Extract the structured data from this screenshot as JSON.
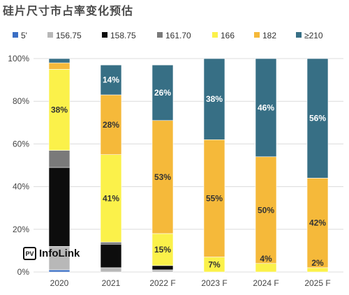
{
  "title": "硅片尺寸市占率变化预估",
  "logo": {
    "mark": "PV",
    "text": "InfoLink"
  },
  "colors": {
    "5'": "#3b6fc4",
    "156.75": "#b8b8b8",
    "158.75": "#0d0d0d",
    "161.70": "#7a7a7a",
    "166": "#fbf14a",
    "182": "#f5b93a",
    "≥210": "#376f85",
    "grid": "#dcdcdc",
    "axis_text": "#444444"
  },
  "chart_data": {
    "type": "bar",
    "stacked": true,
    "categories": [
      "2020",
      "2021",
      "2022 F",
      "2023 F",
      "2024 F",
      "2025 F"
    ],
    "series": [
      {
        "name": "5'",
        "values": [
          1,
          0,
          0,
          0,
          0,
          0
        ]
      },
      {
        "name": "156.75",
        "values": [
          11,
          2,
          1,
          0,
          0,
          0
        ]
      },
      {
        "name": "158.75",
        "values": [
          37,
          11,
          2,
          0,
          0,
          0
        ]
      },
      {
        "name": "161.70",
        "values": [
          8,
          1,
          0,
          0,
          0,
          0
        ]
      },
      {
        "name": "166",
        "values": [
          38,
          41,
          15,
          7,
          4,
          2
        ]
      },
      {
        "name": "182",
        "values": [
          3,
          28,
          53,
          55,
          50,
          42
        ]
      },
      {
        "name": "≥210",
        "values": [
          2,
          14,
          26,
          38,
          46,
          56
        ]
      }
    ],
    "data_labels": [
      {
        "category": "2020",
        "series": "166",
        "text": "38%"
      },
      {
        "category": "2021",
        "series": "166",
        "text": "41%"
      },
      {
        "category": "2021",
        "series": "182",
        "text": "28%"
      },
      {
        "category": "2021",
        "series": "≥210",
        "text": "14%"
      },
      {
        "category": "2022 F",
        "series": "166",
        "text": "15%"
      },
      {
        "category": "2022 F",
        "series": "182",
        "text": "53%"
      },
      {
        "category": "2022 F",
        "series": "≥210",
        "text": "26%"
      },
      {
        "category": "2023 F",
        "series": "166",
        "text": "7%"
      },
      {
        "category": "2023 F",
        "series": "182",
        "text": "55%"
      },
      {
        "category": "2023 F",
        "series": "≥210",
        "text": "38%"
      },
      {
        "category": "2024 F",
        "series": "166",
        "text": "4%"
      },
      {
        "category": "2024 F",
        "series": "182",
        "text": "50%"
      },
      {
        "category": "2024 F",
        "series": "≥210",
        "text": "46%"
      },
      {
        "category": "2025 F",
        "series": "166",
        "text": "2%"
      },
      {
        "category": "2025 F",
        "series": "182",
        "text": "42%"
      },
      {
        "category": "2025 F",
        "series": "≥210",
        "text": "56%"
      }
    ],
    "y_ticks": [
      "0%",
      "20%",
      "40%",
      "60%",
      "80%",
      "100%"
    ],
    "ylim": [
      0,
      100
    ],
    "grid": true,
    "legend_position": "top"
  }
}
